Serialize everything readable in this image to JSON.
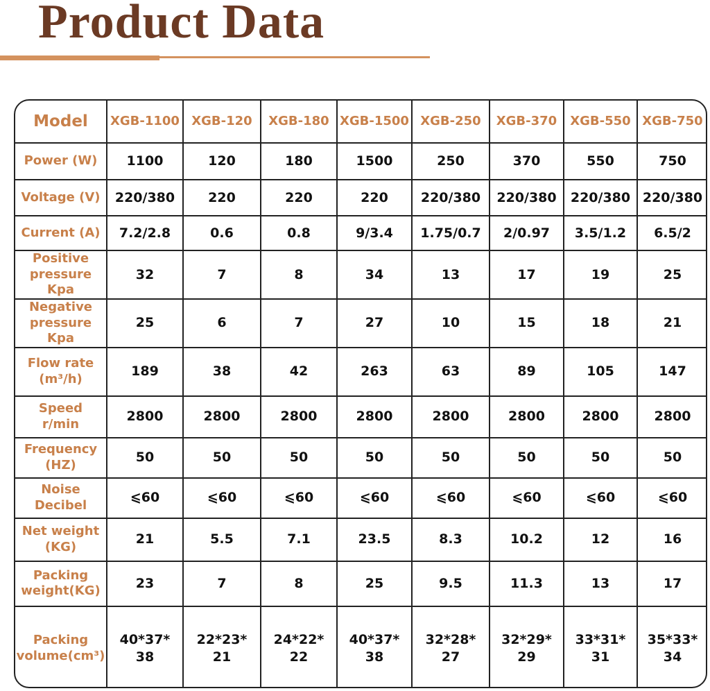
{
  "header": {
    "title": "Product Data"
  },
  "table": {
    "header": [
      "Model",
      "XGB-1100",
      "XGB-120",
      "XGB-180",
      "XGB-1500",
      "XGB-250",
      "XGB-370",
      "XGB-550",
      "XGB-750"
    ],
    "rows": [
      [
        "Power (W)",
        "1100",
        "120",
        "180",
        "1500",
        "250",
        "370",
        "550",
        "750"
      ],
      [
        "Voltage (V)",
        "220/380",
        "220",
        "220",
        "220",
        "220/380",
        "220/380",
        "220/380",
        "220/380"
      ],
      [
        "Current (A)",
        "7.2/2.8",
        "0.6",
        "0.8",
        "9/3.4",
        "1.75/0.7",
        "2/0.97",
        "3.5/1.2",
        "6.5/2"
      ],
      [
        "Positive\npressure Kpa",
        "32",
        "7",
        "8",
        "34",
        "13",
        "17",
        "19",
        "25"
      ],
      [
        "Negative\npressure Kpa",
        "25",
        "6",
        "7",
        "27",
        "10",
        "15",
        "18",
        "21"
      ],
      [
        "Flow rate\n(m³/h)",
        "189",
        "38",
        "42",
        "263",
        "63",
        "89",
        "105",
        "147"
      ],
      [
        "Speed\nr/min",
        "2800",
        "2800",
        "2800",
        "2800",
        "2800",
        "2800",
        "2800",
        "2800"
      ],
      [
        "Frequency\n(HZ)",
        "50",
        "50",
        "50",
        "50",
        "50",
        "50",
        "50",
        "50"
      ],
      [
        "Noise\nDecibel",
        "⩽60",
        "⩽60",
        "⩽60",
        "⩽60",
        "⩽60",
        "⩽60",
        "⩽60",
        "⩽60"
      ],
      [
        "Net weight\n(KG)",
        "21",
        "5.5",
        "7.1",
        "23.5",
        "8.3",
        "10.2",
        "12",
        "16"
      ],
      [
        "Packing\nweight(KG)",
        "23",
        "7",
        "8",
        "25",
        "9.5",
        "11.3",
        "13",
        "17"
      ],
      [
        "Packing\nvolume(cm³)",
        "40*37*\n38",
        "22*23*\n21",
        "24*22*\n22",
        "40*37*\n38",
        "32*28*\n27",
        "32*29*\n29",
        "33*31*\n31",
        "35*33*\n34"
      ]
    ]
  }
}
